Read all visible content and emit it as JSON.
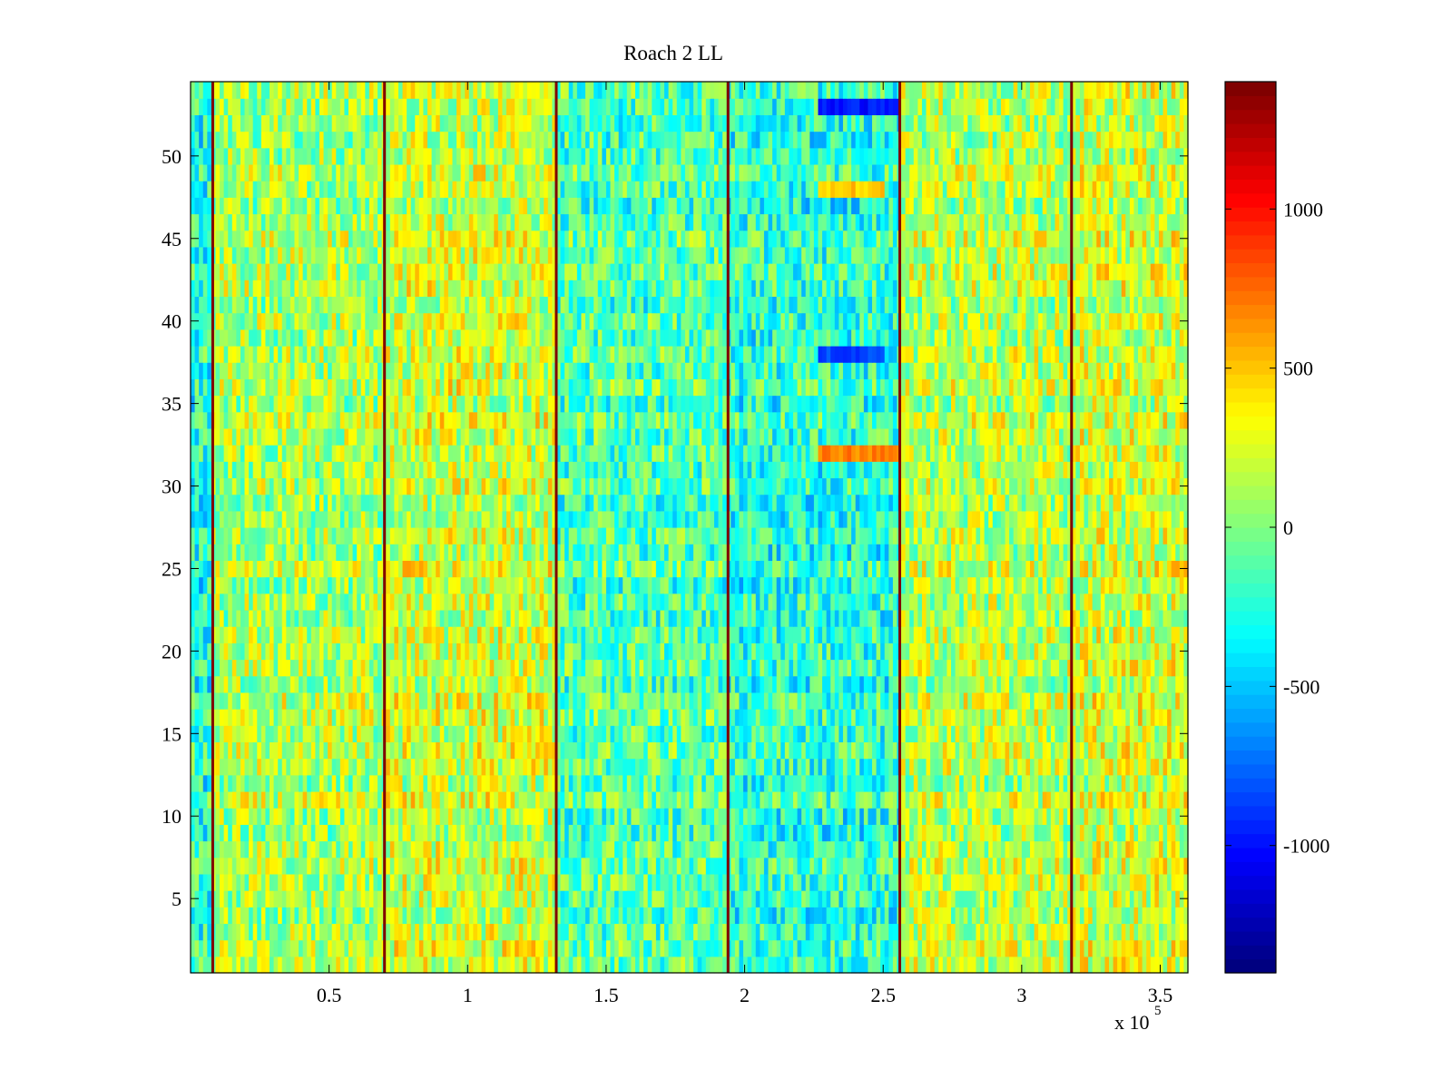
{
  "chart_data": {
    "type": "heatmap",
    "title": "Roach 2 LL",
    "xlabel": "",
    "ylabel": "",
    "x_exponent_label": {
      "base": "x 10",
      "exponent": "5"
    },
    "x_scale_factor": 100000,
    "xlim": [
      0,
      360000
    ],
    "ylim": [
      0.5,
      54.5
    ],
    "x_ticks": [
      50000,
      100000,
      150000,
      200000,
      250000,
      300000,
      350000
    ],
    "x_tick_labels": [
      "0.5",
      "1",
      "1.5",
      "2",
      "2.5",
      "3",
      "3.5"
    ],
    "y_ticks": [
      5,
      10,
      15,
      20,
      25,
      30,
      35,
      40,
      45,
      50
    ],
    "y_tick_labels": [
      "5",
      "10",
      "15",
      "20",
      "25",
      "30",
      "35",
      "40",
      "45",
      "50"
    ],
    "rows": 54,
    "colormap": "jet",
    "clim": [
      -1400,
      1400
    ],
    "colorbar": {
      "ticks": [
        -1000,
        -500,
        0,
        500,
        1000
      ],
      "tick_labels": [
        "-1000",
        "-500",
        "0",
        "500",
        "1000"
      ]
    },
    "column_segments": [
      {
        "x_start": 0,
        "x_end": 8000,
        "mean_value": -250
      },
      {
        "x_start": 8000,
        "x_end": 70000,
        "mean_value": 120
      },
      {
        "x_start": 70000,
        "x_end": 132000,
        "mean_value": 220
      },
      {
        "x_start": 132000,
        "x_end": 194000,
        "mean_value": -120
      },
      {
        "x_start": 194000,
        "x_end": 256000,
        "mean_value": -230
      },
      {
        "x_start": 256000,
        "x_end": 318000,
        "mean_value": 160
      },
      {
        "x_start": 318000,
        "x_end": 360000,
        "mean_value": 230
      }
    ],
    "high_value_columns": [
      {
        "x": 8000,
        "value": 1400
      },
      {
        "x": 70000,
        "value": 1400
      },
      {
        "x": 132000,
        "value": 1400
      },
      {
        "x": 194000,
        "value": 1400
      },
      {
        "x": 256000,
        "value": 1400
      },
      {
        "x": 318000,
        "value": 1400
      }
    ],
    "notable_regions": [
      {
        "x_start": 226000,
        "x_end": 256000,
        "y": 32,
        "value": 700
      },
      {
        "x_start": 226000,
        "x_end": 256000,
        "y": 53,
        "value": -1000
      },
      {
        "x_start": 226000,
        "x_end": 250000,
        "y": 38,
        "value": -850
      },
      {
        "x_start": 226000,
        "x_end": 250000,
        "y": 48,
        "value": 500
      }
    ],
    "grid": false,
    "legend": "none"
  },
  "colors": {
    "axis": "#000000",
    "background": "#ffffff"
  }
}
